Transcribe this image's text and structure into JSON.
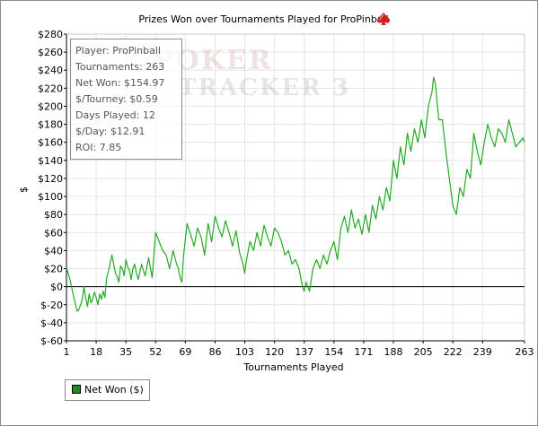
{
  "chart_data": {
    "type": "line",
    "title": "Prizes Won over Tournaments Played for ProPinball",
    "xlabel": "Tournaments Played",
    "ylabel": "$",
    "xlim": [
      1,
      263
    ],
    "ylim": [
      -60,
      280
    ],
    "x_ticks": [
      "1",
      "18",
      "35",
      "52",
      "69",
      "86",
      "103",
      "120",
      "137",
      "154",
      "171",
      "188",
      "205",
      "222",
      "239",
      "263"
    ],
    "y_ticks": [
      "$280",
      "$260",
      "$240",
      "$220",
      "$200",
      "$180",
      "$160",
      "$140",
      "$120",
      "$100",
      "$80",
      "$60",
      "$40",
      "$20",
      "$0",
      "$-20",
      "$-40",
      "$-60"
    ],
    "grid": true,
    "legend_position": "bottom-left",
    "series": [
      {
        "name": "Net Won ($)",
        "color": "#22aa22",
        "x": [
          1,
          3,
          5,
          7,
          8,
          10,
          11,
          12,
          13,
          14,
          15,
          16,
          17,
          18,
          19,
          20,
          21,
          22,
          23,
          24,
          25,
          27,
          28,
          29,
          30,
          31,
          32,
          33,
          34,
          35,
          36,
          37,
          38,
          39,
          40,
          41,
          42,
          44,
          45,
          46,
          48,
          50,
          52,
          54,
          56,
          58,
          60,
          62,
          64,
          65,
          66,
          67,
          68,
          70,
          72,
          74,
          76,
          78,
          80,
          82,
          84,
          86,
          88,
          90,
          92,
          94,
          96,
          98,
          100,
          102,
          103,
          104,
          106,
          108,
          110,
          112,
          114,
          116,
          118,
          120,
          122,
          124,
          126,
          128,
          130,
          132,
          134,
          136,
          137,
          138,
          140,
          142,
          144,
          146,
          148,
          150,
          152,
          154,
          156,
          158,
          160,
          162,
          164,
          166,
          168,
          170,
          172,
          174,
          176,
          178,
          180,
          182,
          184,
          186,
          188,
          190,
          192,
          194,
          196,
          198,
          200,
          202,
          204,
          206,
          208,
          210,
          211,
          212,
          214,
          216,
          218,
          220,
          222,
          224,
          226,
          228,
          230,
          232,
          234,
          236,
          238,
          240,
          242,
          244,
          246,
          248,
          250,
          252,
          254,
          256,
          258,
          260,
          262,
          263
        ],
        "values": [
          21,
          8,
          -10,
          -27,
          -26,
          -15,
          0,
          -12,
          -22,
          -8,
          -18,
          -14,
          -6,
          -12,
          -20,
          -8,
          -14,
          -5,
          -12,
          10,
          17,
          35,
          25,
          15,
          11,
          5,
          23,
          20,
          12,
          30,
          22,
          18,
          8,
          20,
          25,
          15,
          8,
          25,
          18,
          12,
          32,
          10,
          60,
          50,
          40,
          35,
          20,
          40,
          25,
          20,
          10,
          5,
          35,
          70,
          58,
          45,
          65,
          55,
          35,
          70,
          50,
          78,
          65,
          55,
          73,
          60,
          45,
          62,
          38,
          25,
          15,
          30,
          50,
          40,
          60,
          45,
          68,
          55,
          45,
          65,
          60,
          50,
          35,
          40,
          25,
          30,
          20,
          0,
          -5,
          5,
          -5,
          20,
          30,
          20,
          35,
          25,
          40,
          50,
          30,
          65,
          78,
          60,
          85,
          65,
          75,
          58,
          80,
          60,
          90,
          75,
          100,
          85,
          110,
          95,
          140,
          120,
          155,
          135,
          170,
          150,
          175,
          160,
          185,
          165,
          200,
          215,
          232,
          225,
          185,
          185,
          150,
          120,
          90,
          80,
          110,
          100,
          130,
          120,
          170,
          150,
          135,
          160,
          180,
          165,
          155,
          175,
          170,
          160,
          185,
          170,
          155,
          160,
          165,
          160
        ]
      }
    ]
  },
  "stats": [
    "Player: ProPinball",
    "Tournaments: 263",
    "Net Won: $154.97",
    "$/Tourney: $0.59",
    "Days Played: 12",
    "$/Day: $12.91",
    "ROI: 7.85"
  ],
  "watermark": {
    "line1": "POKER",
    "line2": "TRACKER 3"
  },
  "colors": {
    "grid": "#e4e4e4",
    "axis": "#000000",
    "zero_line": "#000000",
    "series": "#22aa22",
    "legend_swatch": "#228822",
    "spade": "#cc2222"
  },
  "icons": {
    "title_icon": "spade-icon"
  }
}
